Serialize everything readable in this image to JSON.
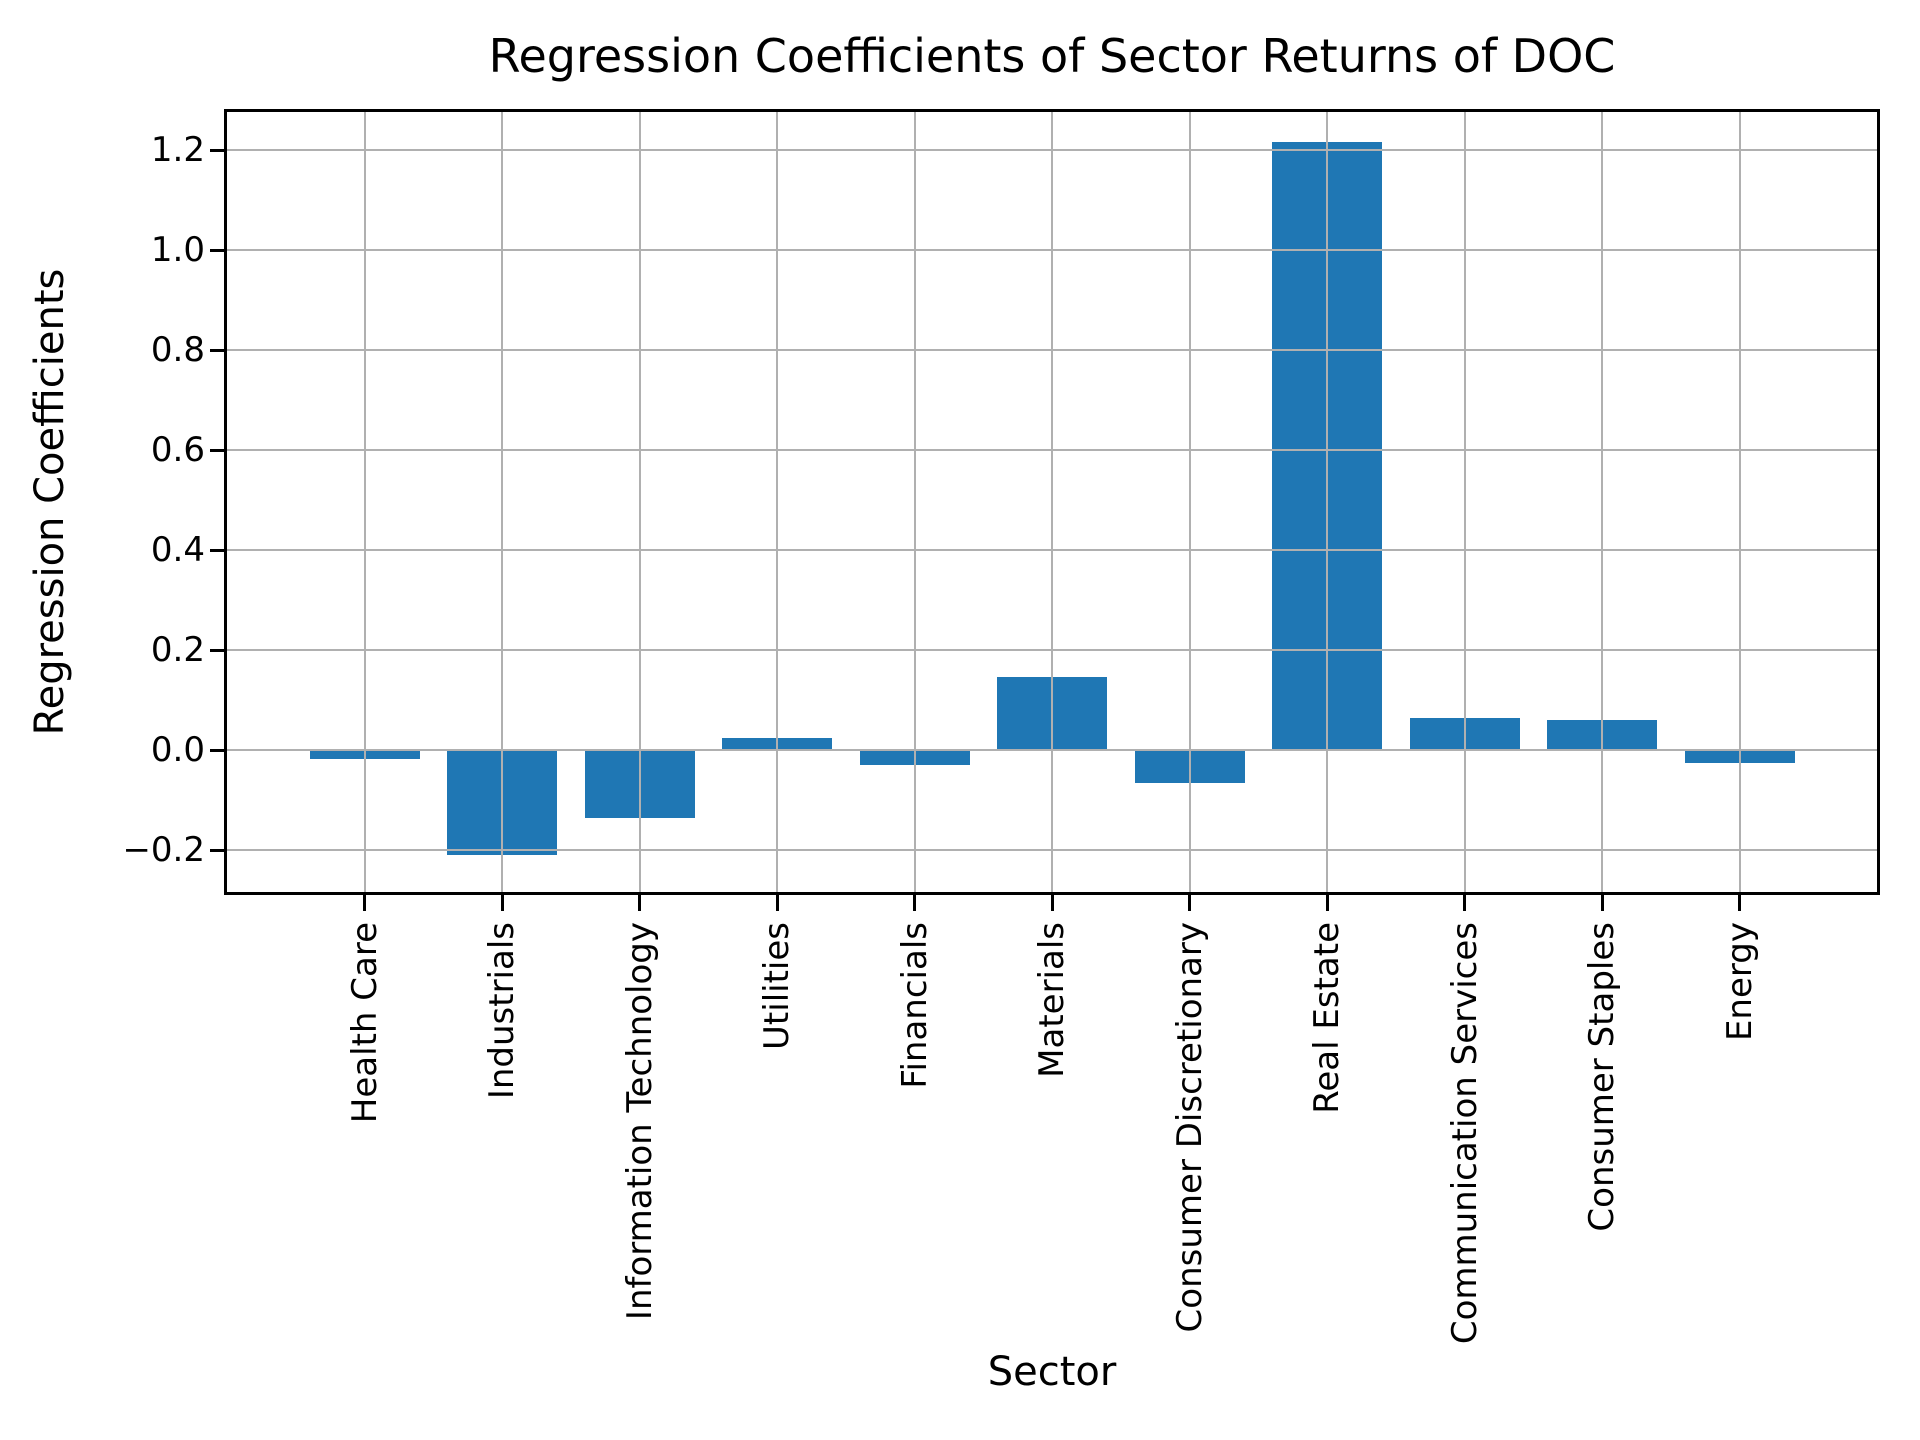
{
  "chart_data": {
    "type": "bar",
    "title": "Regression Coefficients of Sector Returns of DOC",
    "xlabel": "Sector",
    "ylabel": "Regression Coefficients",
    "categories": [
      "Health Care",
      "Industrials",
      "Information Technology",
      "Utilities",
      "Financials",
      "Materials",
      "Consumer Discretionary",
      "Real Estate",
      "Communication Services",
      "Consumer Staples",
      "Energy"
    ],
    "values": [
      -0.018,
      -0.21,
      -0.135,
      0.024,
      -0.03,
      0.147,
      -0.066,
      1.216,
      0.064,
      0.061,
      -0.026
    ],
    "ytick_values": [
      1.2,
      1.0,
      0.8,
      0.6,
      0.4,
      0.2,
      0.0,
      -0.2
    ],
    "ytick_labels": [
      "1.2",
      "1.0",
      "0.8",
      "0.6",
      "0.4",
      "0.2",
      "0.0",
      "−0.2"
    ],
    "ylim": [
      -0.284,
      1.276
    ],
    "grid": true,
    "legend_position": "none",
    "bar_color": "#1f77b4",
    "grid_color": "#b0b0b0",
    "spine_color": "#000000",
    "background_color": "#ffffff"
  }
}
